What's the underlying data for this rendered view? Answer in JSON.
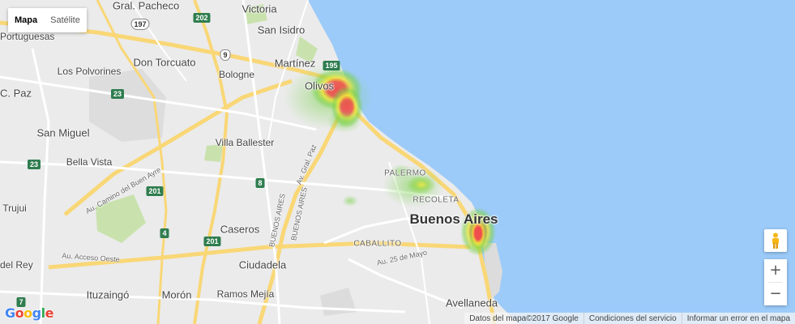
{
  "map_type_control": {
    "map": "Mapa",
    "satellite": "Satélite",
    "active": "map"
  },
  "colors": {
    "water": "#9ccbf9",
    "land": "#ebebeb",
    "highway": "#f9d776",
    "arterial": "#ffffff",
    "park": "#c9e2ad",
    "heat_low": "#7ad14b",
    "heat_mid": "#f1e73a",
    "heat_high": "#f04c4c"
  },
  "place_labels": {
    "victoria": "Victoria",
    "gral_pacheco": "Gral. Pacheco",
    "portuguesas": "Portuguesas",
    "san_isidro": "San Isidro",
    "martinez": "Martínez",
    "olivos": "Olivos",
    "don_torcuato": "Don Torcuato",
    "los_polvorines": "Los Polvorines",
    "bologne": "Bologne",
    "c_paz": "C. Paz",
    "san_miguel": "San Miguel",
    "villa_ballester": "Villa Ballester",
    "bella_vista": "Bella Vista",
    "trujui": "Trujui",
    "caseros": "Caseros",
    "del_rey": "del Rey",
    "ciudadela": "Ciudadela",
    "ituzaingo": "Ituzaingó",
    "moron": "Morón",
    "ramos_mejia": "Ramos Mejía",
    "avellaneda": "Avellaneda",
    "buenos_aires": "Buenos Aires",
    "palermo": "PALERMO",
    "recoleta": "RECOLETA",
    "caballito": "CABALLITO"
  },
  "road_labels": {
    "av_gral_paz": "Av. Gral. Paz",
    "buenos_aires_1": "BUENOS AIRES",
    "buenos_aires_2": "BUENOS AIRES",
    "au_camino_buen_ayre": "Au. Camino del Buen Ayre",
    "au_acceso_oeste": "Au. Acceso Oeste",
    "au_25_mayo": "Au. 25 de Mayo"
  },
  "route_shields": {
    "r197": "197",
    "r202": "202",
    "r9": "9",
    "r195": "195",
    "r23a": "23",
    "r23b": "23",
    "r8": "8",
    "r201a": "201",
    "r201b": "201",
    "r4": "4",
    "r7": "7"
  },
  "heatmap": {
    "description_levels": [
      "low",
      "mid",
      "high"
    ],
    "clusters": [
      {
        "area": "Olivos",
        "intensity": 1.0
      },
      {
        "area": "Olivos south",
        "intensity": 0.95
      },
      {
        "area": "Palermo",
        "intensity": 0.6
      },
      {
        "area": "Buenos Aires centro",
        "intensity": 1.0
      }
    ]
  },
  "controls": {
    "zoom_in": "+",
    "zoom_out": "−"
  },
  "logo": {
    "text": "Google"
  },
  "attribution": {
    "data": "Datos del mapa©2017 Google",
    "terms": "Condiciones del servicio",
    "report": "Informar un error en el mapa"
  }
}
